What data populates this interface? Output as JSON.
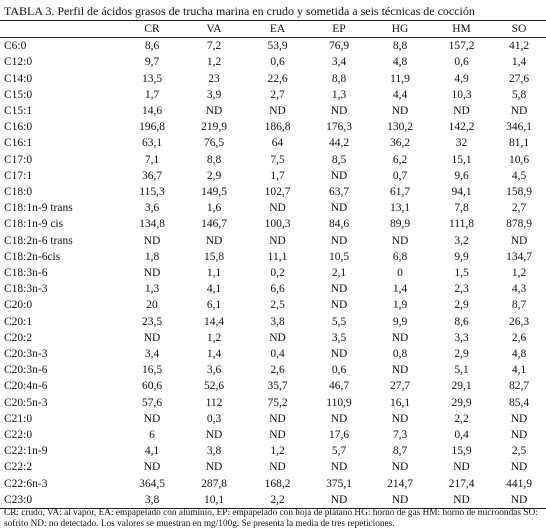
{
  "title": "TABLA 3. Perfil de ácidos grasos de trucha marina en crudo y sometida a seis técnicas de cocción",
  "table": {
    "header": [
      "CR",
      "VA",
      "EA",
      "EP",
      "HG",
      "HM",
      "SO"
    ],
    "rows": [
      [
        "C6:0",
        "8,6",
        "7,2",
        "53,9",
        "76,9",
        "8,8",
        "157,2",
        "41,2"
      ],
      [
        "C12:0",
        "9,7",
        "1,2",
        "0,6",
        "3,4",
        "4,8",
        "0,6",
        "1,4"
      ],
      [
        "C14:0",
        "13,5",
        "23",
        "22,6",
        "8,8",
        "11,9",
        "4,9",
        "27,6"
      ],
      [
        "C15:0",
        "1,7",
        "3,9",
        "2,7",
        "1,3",
        "4,4",
        "10,3",
        "5,8"
      ],
      [
        "C15:1",
        "14,6",
        "ND",
        "ND",
        "ND",
        "ND",
        "ND",
        "ND"
      ],
      [
        "C16:0",
        "196,8",
        "219,9",
        "186,8",
        "176,3",
        "130,2",
        "142,2",
        "346,1"
      ],
      [
        "C16:1",
        "63,1",
        "76,5",
        "64",
        "44,2",
        "36,2",
        "32",
        "81,1"
      ],
      [
        "C17:0",
        "7,1",
        "8,8",
        "7,5",
        "8,5",
        "6,2",
        "15,1",
        "10,6"
      ],
      [
        "C17:1",
        "36,7",
        "2,9",
        "1,7",
        "ND",
        "0,7",
        "9,6",
        "4,5"
      ],
      [
        "C18:0",
        "115,3",
        "149,5",
        "102,7",
        "63,7",
        "61,7",
        "94,1",
        "158,9"
      ],
      [
        "C18:1n-9 trans",
        "3,6",
        "1,6",
        "ND",
        "ND",
        "13,1",
        "7,8",
        "2,7"
      ],
      [
        "C18:1n-9 cis",
        "134,8",
        "146,7",
        "100,3",
        "84,6",
        "89,9",
        "111,8",
        "878,9"
      ],
      [
        "C18:2n-6 trans",
        "ND",
        "ND",
        "ND",
        "ND",
        "ND",
        "3,2",
        "ND"
      ],
      [
        "C18:2n-6cis",
        "1,8",
        "15,8",
        "11,1",
        "10,5",
        "6,8",
        "9,9",
        "134,7"
      ],
      [
        "C18:3n-6",
        "ND",
        "1,1",
        "0,2",
        "2,1",
        "0",
        "1,5",
        "1,2"
      ],
      [
        "C18:3n-3",
        "1,3",
        "4,1",
        "6,6",
        "ND",
        "1,4",
        "2,3",
        "4,3"
      ],
      [
        "C20:0",
        "20",
        "6,1",
        "2,5",
        "ND",
        "1,9",
        "2,9",
        "8,7"
      ],
      [
        "C20:1",
        "23,5",
        "14,4",
        "3,8",
        "5,5",
        "9,9",
        "8,6",
        "26,3"
      ],
      [
        "C20:2",
        "ND",
        "1,2",
        "ND",
        "3,5",
        "ND",
        "3,3",
        "2,6"
      ],
      [
        "C20:3n-3",
        "3,4",
        "1,4",
        "0,4",
        "ND",
        "0,8",
        "2,9",
        "4,8"
      ],
      [
        "C20:3n-6",
        "16,5",
        "3,6",
        "2,6",
        "0,6",
        "ND",
        "5,1",
        "4,1"
      ],
      [
        "C20:4n-6",
        "60,6",
        "52,6",
        "35,7",
        "46,7",
        "27,7",
        "29,1",
        "82,7"
      ],
      [
        "C20:5n-3",
        "57,6",
        "112",
        "75,2",
        "110,9",
        "16,1",
        "29,9",
        "85,4"
      ],
      [
        "C21:0",
        "ND",
        "0,3",
        "ND",
        "ND",
        "ND",
        "2,2",
        "ND"
      ],
      [
        "C22:0",
        "6",
        "ND",
        "ND",
        "17,6",
        "7,3",
        "0,4",
        "ND"
      ],
      [
        "C22:1n-9",
        "4,1",
        "3,8",
        "1,2",
        "5,7",
        "8,7",
        "15,9",
        "2,5"
      ],
      [
        "C22:2",
        "ND",
        "ND",
        "ND",
        "ND",
        "ND",
        "ND",
        "ND"
      ],
      [
        "C22:6n-3",
        "364,5",
        "287,8",
        "168,2",
        "375,1",
        "214,7",
        "217,4",
        "441,9"
      ],
      [
        "C23:0",
        "3,8",
        "10,1",
        "2,2",
        "ND",
        "ND",
        "ND",
        "ND"
      ]
    ]
  },
  "footnote": "CR: crudo, VA: al vapor, EA: empapelado con aluminio, EP: empapelado con hoja de plátano HG: horno de gas HM: horno de microondas SO: sofrito ND: no detectado. Los valores se muestran en mg/100g. Se presenta la media de tres repeticiones."
}
